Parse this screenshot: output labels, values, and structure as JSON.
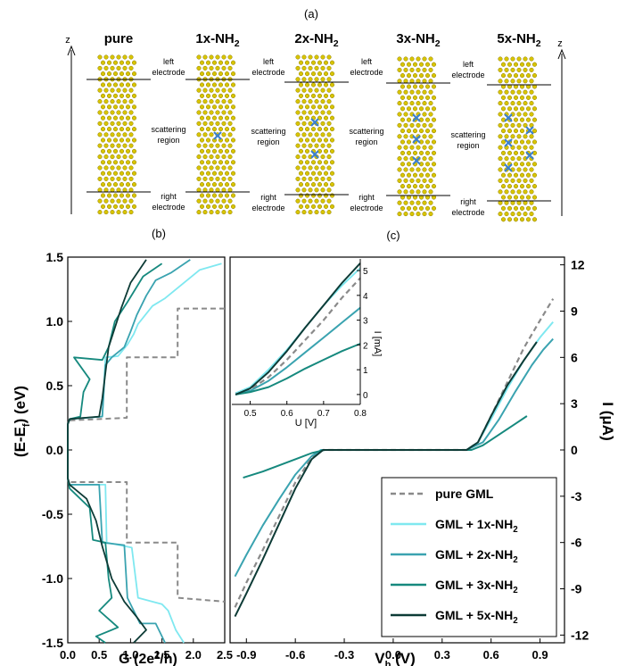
{
  "figure": {
    "label_a": "(a)",
    "label_b": "(b)",
    "label_c": "(c)",
    "z_axis": "z",
    "structures": [
      {
        "name": "pure",
        "groups": 0
      },
      {
        "name": "1x-NH2",
        "groups": 1
      },
      {
        "name": "2x-NH2",
        "groups": 2
      },
      {
        "name": "3x-NH2",
        "groups": 3
      },
      {
        "name": "5x-NH2",
        "groups": 5
      }
    ],
    "region_labels": {
      "left_1": "left",
      "left_2": "electrode",
      "scat_1": "scattering",
      "scat_2": "region",
      "right_1": "right",
      "right_2": "electrode"
    },
    "colors": {
      "atom": "#d8c400",
      "atom_edge": "#8c7c00",
      "nh2": "#3a7fd0",
      "pure": "#8a8a8a",
      "nh2_1x": "#7fe8f0",
      "nh2_2x": "#3aa3b0",
      "nh2_3x": "#16897e",
      "nh2_5x": "#0d3b36"
    }
  },
  "chart_data": [
    {
      "type": "line",
      "panel": "b",
      "xlabel": "G (2e²/h)",
      "ylabel": "(E-E_f) (eV)",
      "xlim": [
        0,
        2.5
      ],
      "ylim": [
        -1.5,
        1.5
      ],
      "xticks": [
        "0.0",
        "0.5",
        "1.0",
        "1.5",
        "2.0",
        "2.5"
      ],
      "yticks": [
        "-1.5",
        "-1.0",
        "-0.5",
        "0.0",
        "0.5",
        "1.0",
        "1.5"
      ],
      "series": [
        {
          "key": "pure",
          "dashed": true,
          "points": [
            [
              2.5,
              1.1
            ],
            [
              1.75,
              1.1
            ],
            [
              1.75,
              0.72
            ],
            [
              0.94,
              0.72
            ],
            [
              0.94,
              0.25
            ],
            [
              0.02,
              0.23
            ],
            [
              0,
              0.23
            ],
            [
              0,
              -0.23
            ],
            [
              0.02,
              -0.25
            ],
            [
              0.94,
              -0.25
            ],
            [
              0.94,
              -0.72
            ],
            [
              1.75,
              -0.72
            ],
            [
              1.75,
              -1.15
            ],
            [
              2.5,
              -1.18
            ]
          ]
        },
        {
          "key": "nh2_1x",
          "points": [
            [
              2.45,
              1.45
            ],
            [
              2.1,
              1.4
            ],
            [
              1.85,
              1.3
            ],
            [
              1.55,
              1.18
            ],
            [
              1.35,
              1.12
            ],
            [
              1.12,
              0.98
            ],
            [
              1.05,
              0.9
            ],
            [
              0.95,
              0.82
            ],
            [
              0.8,
              0.73
            ],
            [
              0.6,
              0.72
            ],
            [
              0.55,
              0.26
            ],
            [
              0.03,
              0.24
            ],
            [
              0,
              0.2
            ],
            [
              0,
              -0.22
            ],
            [
              0.03,
              -0.27
            ],
            [
              0.6,
              -0.27
            ],
            [
              0.62,
              -0.72
            ],
            [
              1.02,
              -0.76
            ],
            [
              1.12,
              -1.15
            ],
            [
              1.5,
              -1.2
            ],
            [
              1.6,
              -1.25
            ],
            [
              1.72,
              -1.4
            ],
            [
              1.85,
              -1.5
            ]
          ]
        },
        {
          "key": "nh2_2x",
          "points": [
            [
              1.95,
              1.48
            ],
            [
              1.65,
              1.38
            ],
            [
              1.4,
              1.32
            ],
            [
              1.25,
              1.2
            ],
            [
              1.1,
              1.05
            ],
            [
              1.0,
              0.92
            ],
            [
              0.9,
              0.8
            ],
            [
              0.7,
              0.72
            ],
            [
              0.6,
              0.66
            ],
            [
              0.55,
              0.26
            ],
            [
              0.03,
              0.24
            ],
            [
              0,
              0.2
            ],
            [
              0,
              -0.22
            ],
            [
              0.03,
              -0.27
            ],
            [
              0.5,
              -0.27
            ],
            [
              0.55,
              -0.72
            ],
            [
              0.9,
              -0.74
            ],
            [
              0.95,
              -1.15
            ],
            [
              1.15,
              -1.35
            ],
            [
              1.4,
              -1.35
            ],
            [
              1.55,
              -1.5
            ]
          ]
        },
        {
          "key": "nh2_3x",
          "points": [
            [
              1.5,
              1.45
            ],
            [
              1.2,
              1.35
            ],
            [
              0.95,
              1.15
            ],
            [
              0.75,
              1.0
            ],
            [
              0.65,
              0.8
            ],
            [
              0.55,
              0.7
            ],
            [
              0.1,
              0.72
            ],
            [
              0.35,
              0.55
            ],
            [
              0.25,
              0.45
            ],
            [
              0.2,
              0.26
            ],
            [
              0.03,
              0.24
            ],
            [
              0,
              0.2
            ],
            [
              0,
              -0.22
            ],
            [
              0.03,
              -0.3
            ],
            [
              0.35,
              -0.45
            ],
            [
              0.4,
              -0.7
            ],
            [
              0.6,
              -0.72
            ],
            [
              0.65,
              -1.0
            ],
            [
              0.7,
              -1.15
            ],
            [
              0.5,
              -1.25
            ],
            [
              0.8,
              -1.38
            ],
            [
              0.45,
              -1.45
            ],
            [
              0.6,
              -1.5
            ]
          ]
        },
        {
          "key": "nh2_5x",
          "points": [
            [
              1.25,
              1.48
            ],
            [
              1.0,
              1.3
            ],
            [
              0.85,
              1.1
            ],
            [
              0.75,
              0.95
            ],
            [
              0.65,
              0.8
            ],
            [
              0.6,
              0.6
            ],
            [
              0.55,
              0.4
            ],
            [
              0.5,
              0.26
            ],
            [
              0.03,
              0.24
            ],
            [
              0,
              0.2
            ],
            [
              0,
              -0.22
            ],
            [
              0.03,
              -0.27
            ],
            [
              0.3,
              -0.38
            ],
            [
              0.45,
              -0.55
            ],
            [
              0.55,
              -0.75
            ],
            [
              0.7,
              -1.0
            ],
            [
              0.9,
              -1.18
            ],
            [
              1.1,
              -1.3
            ],
            [
              1.25,
              -1.4
            ],
            [
              1.05,
              -1.5
            ]
          ]
        }
      ]
    },
    {
      "type": "line",
      "panel": "c",
      "xlabel": "V_b (V)",
      "ylabel": "I (μA)",
      "xlim": [
        -1.0,
        1.05
      ],
      "ylim": [
        -12.5,
        12.5
      ],
      "xticks": [
        "-0.9",
        "-0.6",
        "-0.3",
        "0.0",
        "0.3",
        "0.6",
        "0.9"
      ],
      "yticks": [
        "12",
        "9",
        "6",
        "3",
        "0",
        "-3",
        "-6",
        "-9",
        "-12"
      ],
      "legend_position": "bottom-right",
      "series": [
        {
          "key": "pure",
          "name": "pure GML",
          "dashed": true,
          "points": [
            [
              -0.97,
              -10.2
            ],
            [
              -0.9,
              -8.6
            ],
            [
              -0.8,
              -6.5
            ],
            [
              -0.7,
              -4.3
            ],
            [
              -0.6,
              -2.1
            ],
            [
              -0.5,
              -0.5
            ],
            [
              -0.43,
              0
            ],
            [
              0.45,
              0
            ],
            [
              0.52,
              0.5
            ],
            [
              0.6,
              2.2
            ],
            [
              0.7,
              4.4
            ],
            [
              0.8,
              6.6
            ],
            [
              0.9,
              8.4
            ],
            [
              0.98,
              9.8
            ]
          ]
        },
        {
          "key": "nh2_1x",
          "name": "GML + 1x-NH2",
          "points": [
            [
              -0.45,
              0
            ],
            [
              0.45,
              0
            ],
            [
              0.52,
              0.5
            ],
            [
              0.6,
              2.0
            ],
            [
              0.7,
              4.0
            ],
            [
              0.8,
              5.8
            ],
            [
              0.9,
              7.3
            ],
            [
              0.98,
              8.3
            ]
          ]
        },
        {
          "key": "nh2_2x",
          "name": "GML + 2x-NH2",
          "points": [
            [
              -0.97,
              -8.2
            ],
            [
              -0.9,
              -6.8
            ],
            [
              -0.8,
              -4.9
            ],
            [
              -0.7,
              -3.2
            ],
            [
              -0.6,
              -1.6
            ],
            [
              -0.5,
              -0.4
            ],
            [
              -0.44,
              0
            ],
            [
              0.45,
              0
            ],
            [
              0.55,
              0.5
            ],
            [
              0.65,
              2.0
            ],
            [
              0.75,
              3.8
            ],
            [
              0.85,
              5.5
            ],
            [
              0.92,
              6.5
            ],
            [
              0.98,
              7.2
            ]
          ]
        },
        {
          "key": "nh2_3x",
          "name": "GML + 3x-NH2",
          "points": [
            [
              -0.92,
              -1.8
            ],
            [
              -0.8,
              -1.4
            ],
            [
              -0.7,
              -1.0
            ],
            [
              -0.6,
              -0.6
            ],
            [
              -0.5,
              -0.2
            ],
            [
              -0.42,
              0
            ],
            [
              0.48,
              0
            ],
            [
              0.55,
              0.3
            ],
            [
              0.65,
              1.0
            ],
            [
              0.75,
              1.7
            ],
            [
              0.82,
              2.2
            ]
          ]
        },
        {
          "key": "nh2_5x",
          "name": "GML + 5x-NH2",
          "points": [
            [
              -0.97,
              -10.8
            ],
            [
              -0.9,
              -9.3
            ],
            [
              -0.8,
              -7.1
            ],
            [
              -0.7,
              -4.8
            ],
            [
              -0.6,
              -2.5
            ],
            [
              -0.5,
              -0.6
            ],
            [
              -0.43,
              0
            ],
            [
              0.45,
              0
            ],
            [
              0.52,
              0.5
            ],
            [
              0.6,
              2.2
            ],
            [
              0.7,
              4.2
            ],
            [
              0.8,
              5.8
            ],
            [
              0.88,
              7.0
            ]
          ]
        }
      ],
      "inset": {
        "xlabel": "U [V]",
        "ylabel": "I [mA]",
        "xlim": [
          0.45,
          0.8
        ],
        "ylim": [
          -0.4,
          5.4
        ],
        "xticks": [
          "0.5",
          "0.6",
          "0.7",
          "0.8"
        ],
        "yticks": [
          "0",
          "1",
          "2",
          "3",
          "4",
          "5"
        ],
        "series": [
          {
            "key": "pure",
            "dashed": true,
            "points": [
              [
                0.46,
                0.05
              ],
              [
                0.5,
                0.2
              ],
              [
                0.55,
                0.7
              ],
              [
                0.6,
                1.4
              ],
              [
                0.65,
                2.2
              ],
              [
                0.7,
                3.0
              ],
              [
                0.75,
                3.9
              ],
              [
                0.8,
                4.7
              ]
            ]
          },
          {
            "key": "nh2_1x",
            "points": [
              [
                0.46,
                0.05
              ],
              [
                0.5,
                0.3
              ],
              [
                0.55,
                1.0
              ],
              [
                0.6,
                1.8
              ],
              [
                0.65,
                2.7
              ],
              [
                0.7,
                3.6
              ],
              [
                0.75,
                4.4
              ],
              [
                0.8,
                5.1
              ]
            ]
          },
          {
            "key": "nh2_2x",
            "points": [
              [
                0.46,
                0.0
              ],
              [
                0.5,
                0.15
              ],
              [
                0.55,
                0.55
              ],
              [
                0.6,
                1.1
              ],
              [
                0.65,
                1.7
              ],
              [
                0.7,
                2.3
              ],
              [
                0.75,
                2.9
              ],
              [
                0.8,
                3.5
              ]
            ]
          },
          {
            "key": "nh2_3x",
            "points": [
              [
                0.46,
                0.0
              ],
              [
                0.5,
                0.1
              ],
              [
                0.55,
                0.3
              ],
              [
                0.6,
                0.65
              ],
              [
                0.65,
                1.05
              ],
              [
                0.7,
                1.4
              ],
              [
                0.75,
                1.75
              ],
              [
                0.8,
                2.05
              ]
            ]
          },
          {
            "key": "nh2_5x",
            "points": [
              [
                0.46,
                0.0
              ],
              [
                0.5,
                0.25
              ],
              [
                0.55,
                0.9
              ],
              [
                0.6,
                1.75
              ],
              [
                0.65,
                2.7
              ],
              [
                0.7,
                3.6
              ],
              [
                0.75,
                4.5
              ],
              [
                0.8,
                5.3
              ]
            ]
          }
        ]
      }
    }
  ],
  "legend": [
    {
      "key": "pure",
      "label": "pure GML",
      "dashed": true
    },
    {
      "key": "nh2_1x",
      "label": "GML + 1x-NH2"
    },
    {
      "key": "nh2_2x",
      "label": "GML + 2x-NH2"
    },
    {
      "key": "nh2_3x",
      "label": "GML + 3x-NH2"
    },
    {
      "key": "nh2_5x",
      "label": "GML + 5x-NH2"
    }
  ]
}
